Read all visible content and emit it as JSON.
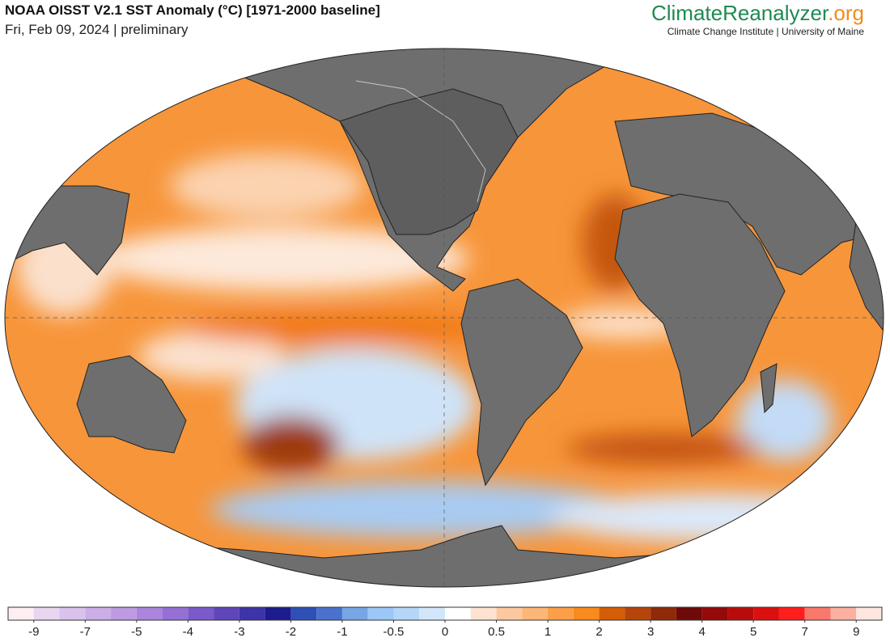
{
  "header": {
    "title": "NOAA OISST V2.1 SST Anomaly (°C) [1971-2000 baseline]",
    "subtitle": "Fri, Feb 09, 2024 | preliminary"
  },
  "logo": {
    "name": "ClimateReanalyzer",
    "suffix": ".org",
    "subtitle": "Climate Change Institute | University of Maine"
  },
  "colorbar": {
    "ticks": [
      -9,
      -7,
      -5,
      -4,
      -3,
      -2,
      -1,
      -0.5,
      0,
      0.5,
      1,
      2,
      3,
      4,
      5,
      7,
      9
    ],
    "colors": [
      "#fdeef2",
      "#e8d6f0",
      "#d9c2ec",
      "#ccaee6",
      "#bd9ae2",
      "#ab85dc",
      "#9470d4",
      "#7a5ac8",
      "#5f46b8",
      "#3d34a8",
      "#1c1c8c",
      "#2f4fb4",
      "#4a72cc",
      "#78a6e4",
      "#9cc7f6",
      "#b4d6f8",
      "#d2e6fa",
      "#ffffff",
      "#fde3cf",
      "#fdc89f",
      "#fcb677",
      "#fb9f48",
      "#f98a1e",
      "#d45e06",
      "#b5450a",
      "#8e2a08",
      "#6e0a08",
      "#940a0a",
      "#b80c0c",
      "#da1010",
      "#ff1e1e",
      "#f9786c",
      "#fbb0a0",
      "#fde6e0"
    ]
  }
}
